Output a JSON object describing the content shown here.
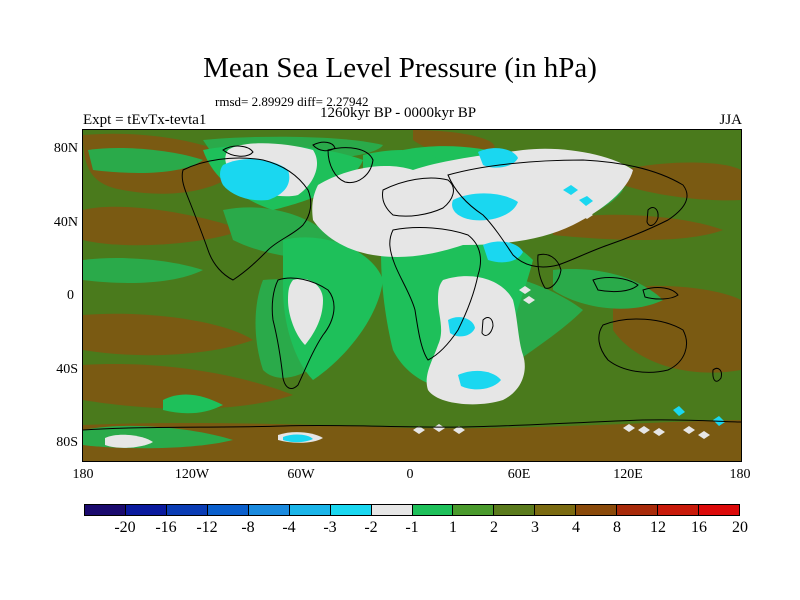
{
  "title": "Mean Sea Level Pressure (in hPa)",
  "stats_text": "rmsd= 2.89929 diff= 2.27942",
  "period_text": "1260kyr BP - 0000kyr BP",
  "expt_text": "Expt = tEvTx-tevta1",
  "season_text": "JJA",
  "lat_labels": [
    "80N",
    "40N",
    "0",
    "40S",
    "80S"
  ],
  "lon_labels": [
    "180",
    "120W",
    "60W",
    "0",
    "60E",
    "120E",
    "180"
  ],
  "colorbar": {
    "colors": [
      "#1a0a6e",
      "#0a1a9e",
      "#0a3cb4",
      "#0a5fcc",
      "#1a8ade",
      "#1ab4e8",
      "#1ad7f0",
      "#e6e6e6",
      "#1ec05a",
      "#4a9a2c",
      "#5a7a1c",
      "#7a6a10",
      "#8a4a0a",
      "#a82a0a",
      "#c81a0a",
      "#dc0a0a"
    ],
    "labels": [
      "-20",
      "-16",
      "-12",
      "-8",
      "-4",
      "-3",
      "-2",
      "-1",
      "1",
      "2",
      "3",
      "4",
      "8",
      "12",
      "16",
      "20"
    ]
  },
  "colors": {
    "brown": "#7a5a12",
    "olive": "#5a7a1c",
    "green": "#2aaa4a",
    "light_green": "#1ec05a",
    "white": "#e6e6e6",
    "cyan": "#1ad7f0",
    "coast": "#000000"
  }
}
